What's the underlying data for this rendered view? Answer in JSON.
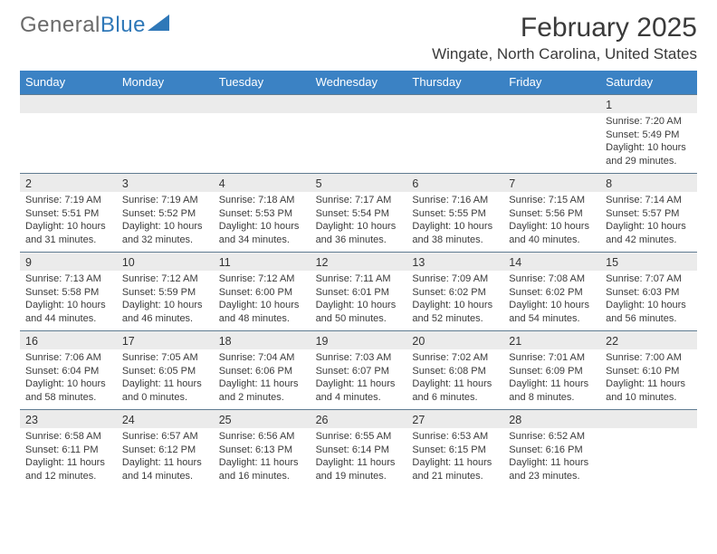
{
  "logo": {
    "text1": "General",
    "text2": "Blue",
    "triangle_color": "#2f78b8"
  },
  "title": "February 2025",
  "location": "Wingate, North Carolina, United States",
  "colors": {
    "header_bg": "#3b82c4",
    "header_text": "#ffffff",
    "strip_bg": "#ebebeb",
    "strip_border": "#5f7b91",
    "body_text": "#3b3b3b",
    "page_bg": "#ffffff"
  },
  "dow": [
    "Sunday",
    "Monday",
    "Tuesday",
    "Wednesday",
    "Thursday",
    "Friday",
    "Saturday"
  ],
  "weeks": [
    [
      {
        "day": "",
        "sunrise": "",
        "sunset": "",
        "daylight": ""
      },
      {
        "day": "",
        "sunrise": "",
        "sunset": "",
        "daylight": ""
      },
      {
        "day": "",
        "sunrise": "",
        "sunset": "",
        "daylight": ""
      },
      {
        "day": "",
        "sunrise": "",
        "sunset": "",
        "daylight": ""
      },
      {
        "day": "",
        "sunrise": "",
        "sunset": "",
        "daylight": ""
      },
      {
        "day": "",
        "sunrise": "",
        "sunset": "",
        "daylight": ""
      },
      {
        "day": "1",
        "sunrise": "Sunrise: 7:20 AM",
        "sunset": "Sunset: 5:49 PM",
        "daylight": "Daylight: 10 hours and 29 minutes."
      }
    ],
    [
      {
        "day": "2",
        "sunrise": "Sunrise: 7:19 AM",
        "sunset": "Sunset: 5:51 PM",
        "daylight": "Daylight: 10 hours and 31 minutes."
      },
      {
        "day": "3",
        "sunrise": "Sunrise: 7:19 AM",
        "sunset": "Sunset: 5:52 PM",
        "daylight": "Daylight: 10 hours and 32 minutes."
      },
      {
        "day": "4",
        "sunrise": "Sunrise: 7:18 AM",
        "sunset": "Sunset: 5:53 PM",
        "daylight": "Daylight: 10 hours and 34 minutes."
      },
      {
        "day": "5",
        "sunrise": "Sunrise: 7:17 AM",
        "sunset": "Sunset: 5:54 PM",
        "daylight": "Daylight: 10 hours and 36 minutes."
      },
      {
        "day": "6",
        "sunrise": "Sunrise: 7:16 AM",
        "sunset": "Sunset: 5:55 PM",
        "daylight": "Daylight: 10 hours and 38 minutes."
      },
      {
        "day": "7",
        "sunrise": "Sunrise: 7:15 AM",
        "sunset": "Sunset: 5:56 PM",
        "daylight": "Daylight: 10 hours and 40 minutes."
      },
      {
        "day": "8",
        "sunrise": "Sunrise: 7:14 AM",
        "sunset": "Sunset: 5:57 PM",
        "daylight": "Daylight: 10 hours and 42 minutes."
      }
    ],
    [
      {
        "day": "9",
        "sunrise": "Sunrise: 7:13 AM",
        "sunset": "Sunset: 5:58 PM",
        "daylight": "Daylight: 10 hours and 44 minutes."
      },
      {
        "day": "10",
        "sunrise": "Sunrise: 7:12 AM",
        "sunset": "Sunset: 5:59 PM",
        "daylight": "Daylight: 10 hours and 46 minutes."
      },
      {
        "day": "11",
        "sunrise": "Sunrise: 7:12 AM",
        "sunset": "Sunset: 6:00 PM",
        "daylight": "Daylight: 10 hours and 48 minutes."
      },
      {
        "day": "12",
        "sunrise": "Sunrise: 7:11 AM",
        "sunset": "Sunset: 6:01 PM",
        "daylight": "Daylight: 10 hours and 50 minutes."
      },
      {
        "day": "13",
        "sunrise": "Sunrise: 7:09 AM",
        "sunset": "Sunset: 6:02 PM",
        "daylight": "Daylight: 10 hours and 52 minutes."
      },
      {
        "day": "14",
        "sunrise": "Sunrise: 7:08 AM",
        "sunset": "Sunset: 6:02 PM",
        "daylight": "Daylight: 10 hours and 54 minutes."
      },
      {
        "day": "15",
        "sunrise": "Sunrise: 7:07 AM",
        "sunset": "Sunset: 6:03 PM",
        "daylight": "Daylight: 10 hours and 56 minutes."
      }
    ],
    [
      {
        "day": "16",
        "sunrise": "Sunrise: 7:06 AM",
        "sunset": "Sunset: 6:04 PM",
        "daylight": "Daylight: 10 hours and 58 minutes."
      },
      {
        "day": "17",
        "sunrise": "Sunrise: 7:05 AM",
        "sunset": "Sunset: 6:05 PM",
        "daylight": "Daylight: 11 hours and 0 minutes."
      },
      {
        "day": "18",
        "sunrise": "Sunrise: 7:04 AM",
        "sunset": "Sunset: 6:06 PM",
        "daylight": "Daylight: 11 hours and 2 minutes."
      },
      {
        "day": "19",
        "sunrise": "Sunrise: 7:03 AM",
        "sunset": "Sunset: 6:07 PM",
        "daylight": "Daylight: 11 hours and 4 minutes."
      },
      {
        "day": "20",
        "sunrise": "Sunrise: 7:02 AM",
        "sunset": "Sunset: 6:08 PM",
        "daylight": "Daylight: 11 hours and 6 minutes."
      },
      {
        "day": "21",
        "sunrise": "Sunrise: 7:01 AM",
        "sunset": "Sunset: 6:09 PM",
        "daylight": "Daylight: 11 hours and 8 minutes."
      },
      {
        "day": "22",
        "sunrise": "Sunrise: 7:00 AM",
        "sunset": "Sunset: 6:10 PM",
        "daylight": "Daylight: 11 hours and 10 minutes."
      }
    ],
    [
      {
        "day": "23",
        "sunrise": "Sunrise: 6:58 AM",
        "sunset": "Sunset: 6:11 PM",
        "daylight": "Daylight: 11 hours and 12 minutes."
      },
      {
        "day": "24",
        "sunrise": "Sunrise: 6:57 AM",
        "sunset": "Sunset: 6:12 PM",
        "daylight": "Daylight: 11 hours and 14 minutes."
      },
      {
        "day": "25",
        "sunrise": "Sunrise: 6:56 AM",
        "sunset": "Sunset: 6:13 PM",
        "daylight": "Daylight: 11 hours and 16 minutes."
      },
      {
        "day": "26",
        "sunrise": "Sunrise: 6:55 AM",
        "sunset": "Sunset: 6:14 PM",
        "daylight": "Daylight: 11 hours and 19 minutes."
      },
      {
        "day": "27",
        "sunrise": "Sunrise: 6:53 AM",
        "sunset": "Sunset: 6:15 PM",
        "daylight": "Daylight: 11 hours and 21 minutes."
      },
      {
        "day": "28",
        "sunrise": "Sunrise: 6:52 AM",
        "sunset": "Sunset: 6:16 PM",
        "daylight": "Daylight: 11 hours and 23 minutes."
      },
      {
        "day": "",
        "sunrise": "",
        "sunset": "",
        "daylight": ""
      }
    ]
  ]
}
